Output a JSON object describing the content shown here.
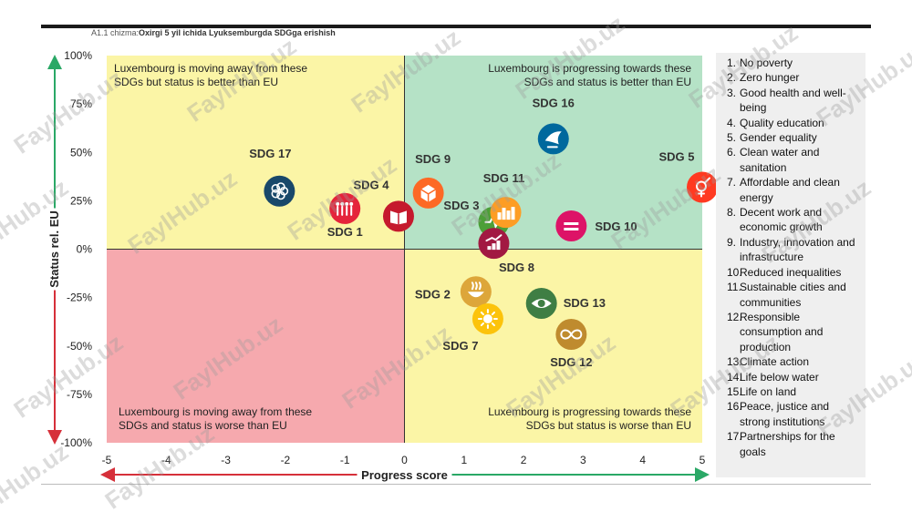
{
  "caption": {
    "prefix": "A1.1 chizma:",
    "title": "Oxirgi 5 yil ichida Lyuksemburgda SDGga erishish"
  },
  "watermark": "FaylHub.uz",
  "chart_data": {
    "type": "scatter",
    "xlabel": "Progress score",
    "ylabel": "Status rel. EU",
    "xlim": [
      -5,
      5
    ],
    "ylim": [
      -100,
      100
    ],
    "xticks": [
      "-5",
      "-4",
      "-3",
      "-2",
      "-1",
      "0",
      "1",
      "2",
      "3",
      "4",
      "5"
    ],
    "yticks": [
      "100%",
      "75%",
      "50%",
      "25%",
      "0%",
      "-25%",
      "-50%",
      "-75%",
      "-100%"
    ],
    "quadrants": [
      {
        "id": "top-left",
        "text": [
          "Luxembourg is moving away from these",
          "SDGs but status is better than EU"
        ],
        "color": "#fbf5a6"
      },
      {
        "id": "top-right",
        "text": [
          "Luxembourg is progressing towards these",
          "SDGs and status is better than EU"
        ],
        "color": "#b5e2c6"
      },
      {
        "id": "bottom-left",
        "text": [
          "Luxembourg is moving away from these",
          "SDGs and status is worse than EU"
        ],
        "color": "#f6a9ae"
      },
      {
        "id": "bottom-right",
        "text": [
          "Luxembourg is progressing towards these",
          "SDGs but status is worse than EU"
        ],
        "color": "#fbf5a6"
      }
    ],
    "points": [
      {
        "label": "SDG 1",
        "x": -1.0,
        "y": 21,
        "color": "#e5243b",
        "icon": "people-icon"
      },
      {
        "label": "SDG 2",
        "x": 1.2,
        "y": -22,
        "color": "#dda63a",
        "icon": "bowl-icon"
      },
      {
        "label": "SDG 3",
        "x": 1.5,
        "y": 14,
        "color": "#4c9f38",
        "icon": "heartbeat-icon"
      },
      {
        "label": "SDG 4",
        "x": -0.1,
        "y": 17,
        "color": "#c5192d",
        "icon": "book-icon"
      },
      {
        "label": "SDG 5",
        "x": 5.0,
        "y": 32,
        "color": "#ff3a21",
        "icon": "gender-icon"
      },
      {
        "label": "SDG 7",
        "x": 1.4,
        "y": -36,
        "color": "#fcc30b",
        "icon": "sun-icon"
      },
      {
        "label": "SDG 8",
        "x": 1.5,
        "y": 3,
        "color": "#a21942",
        "icon": "growth-chart-icon"
      },
      {
        "label": "SDG 9",
        "x": 0.4,
        "y": 29,
        "color": "#fd6925",
        "icon": "cube-icon"
      },
      {
        "label": "SDG 10",
        "x": 2.8,
        "y": 12,
        "color": "#dd1367",
        "icon": "equality-icon"
      },
      {
        "label": "SDG 11",
        "x": 1.7,
        "y": 19,
        "color": "#fd9d24",
        "icon": "city-icon"
      },
      {
        "label": "SDG 12",
        "x": 2.8,
        "y": -44,
        "color": "#bf8b2e",
        "icon": "infinity-icon"
      },
      {
        "label": "SDG 13",
        "x": 2.3,
        "y": -28,
        "color": "#3f7e44",
        "icon": "eye-globe-icon"
      },
      {
        "label": "SDG 16",
        "x": 2.5,
        "y": 57,
        "color": "#00689d",
        "icon": "dove-icon"
      },
      {
        "label": "SDG 17",
        "x": -2.1,
        "y": 30,
        "color": "#19486a",
        "icon": "flower-icon"
      }
    ]
  },
  "legend": [
    {
      "num": "1.",
      "text": "No poverty"
    },
    {
      "num": "2.",
      "text": "Zero hunger"
    },
    {
      "num": "3.",
      "text": "Good health and well-being"
    },
    {
      "num": "4.",
      "text": "Quality education"
    },
    {
      "num": "5.",
      "text": "Gender equality"
    },
    {
      "num": "6.",
      "text": "Clean water and sanitation"
    },
    {
      "num": "7.",
      "text": "Affordable and clean energy"
    },
    {
      "num": "8.",
      "text": "Decent work and economic growth"
    },
    {
      "num": "9.",
      "text": "Industry, innovation and infrastructure"
    },
    {
      "num": "10.",
      "text": "Reduced inequalities"
    },
    {
      "num": "11.",
      "text": "Sustainable cities and communities"
    },
    {
      "num": "12.",
      "text": "Responsible consumption and production"
    },
    {
      "num": "13.",
      "text": "Climate action"
    },
    {
      "num": "14.",
      "text": "Life below water"
    },
    {
      "num": "15.",
      "text": "Life on land"
    },
    {
      "num": "16.",
      "text": "Peace, justice and strong institutions"
    },
    {
      "num": "17.",
      "text": "Partnerships for the goals"
    }
  ]
}
